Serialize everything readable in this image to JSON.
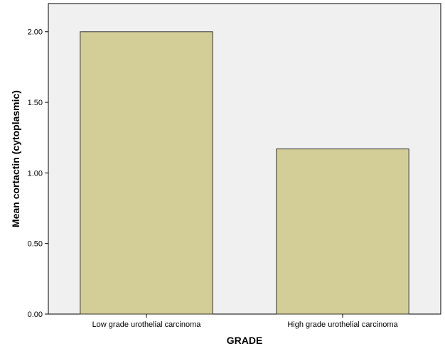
{
  "chart_data": {
    "type": "bar",
    "categories": [
      "Low grade urothelial carcinoma",
      "High grade urothelial carcinoma"
    ],
    "values": [
      2.0,
      1.17
    ],
    "title": "",
    "xlabel": "GRADE",
    "ylabel": "Mean cortactin (cytoplasmic)",
    "ylim": [
      0,
      2.2
    ],
    "yticks": [
      0.0,
      0.5,
      1.0,
      1.5,
      2.0
    ],
    "ytick_labels": [
      "0.00",
      "0.50",
      "1.00",
      "1.50",
      "2.00"
    ],
    "grid": false,
    "legend": "none",
    "colors": {
      "plot_background": "#f0f0f0",
      "bar_fill": "#d3ce97",
      "bar_stroke": "#333333",
      "axis": "#000000"
    }
  }
}
